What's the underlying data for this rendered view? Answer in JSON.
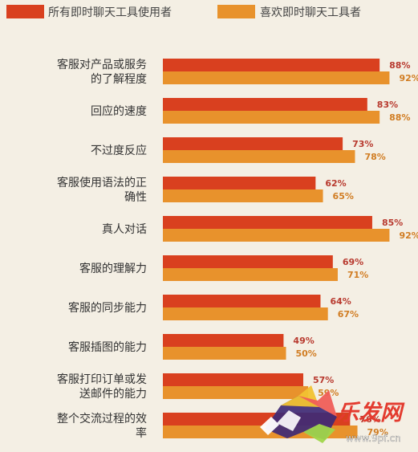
{
  "chart_data": {
    "type": "bar",
    "orientation": "horizontal",
    "categories": [
      "客服对产品或服务的了解程度",
      "回应的速度",
      "不过度反应",
      "客服使用语法的正确性",
      "真人对话",
      "客服的理解力",
      "客服的同步能力",
      "客服插图的能力",
      "客服打印订单或发送邮件的能力",
      "整个交流过程的效率"
    ],
    "category_lines": [
      [
        "客服对产品或服务",
        "的了解程度"
      ],
      [
        "回应的速度"
      ],
      [
        "不过度反应"
      ],
      [
        "客服使用语法的正",
        "确性"
      ],
      [
        "真人对话"
      ],
      [
        "客服的理解力"
      ],
      [
        "客服的同步能力"
      ],
      [
        "客服插图的能力"
      ],
      [
        "客服打印订单或发",
        "送邮件的能力"
      ],
      [
        "整个交流过程的效",
        "率"
      ]
    ],
    "series": [
      {
        "name": "所有即时聊天工具使用者",
        "color": "#d9401f",
        "values": [
          88,
          83,
          73,
          62,
          85,
          69,
          64,
          49,
          57,
          76
        ],
        "labels": [
          "88%",
          "83%",
          "73%",
          "62%",
          "85%",
          "69%",
          "64%",
          "49%",
          "57%",
          "76%"
        ]
      },
      {
        "name": "喜欢即时聊天工具者",
        "color": "#e8922c",
        "values": [
          92,
          88,
          78,
          65,
          92,
          71,
          67,
          50,
          59,
          79
        ],
        "labels": [
          "92%",
          "88%",
          "78%",
          "65%",
          "92%",
          "71%",
          "67%",
          "50%",
          "59%",
          "79%"
        ]
      }
    ],
    "xlim": [
      0,
      100
    ],
    "legend_position": "top",
    "grid": false
  },
  "watermark": {
    "brand_text": "乐发网",
    "url_text": "www.9pf.cn"
  }
}
